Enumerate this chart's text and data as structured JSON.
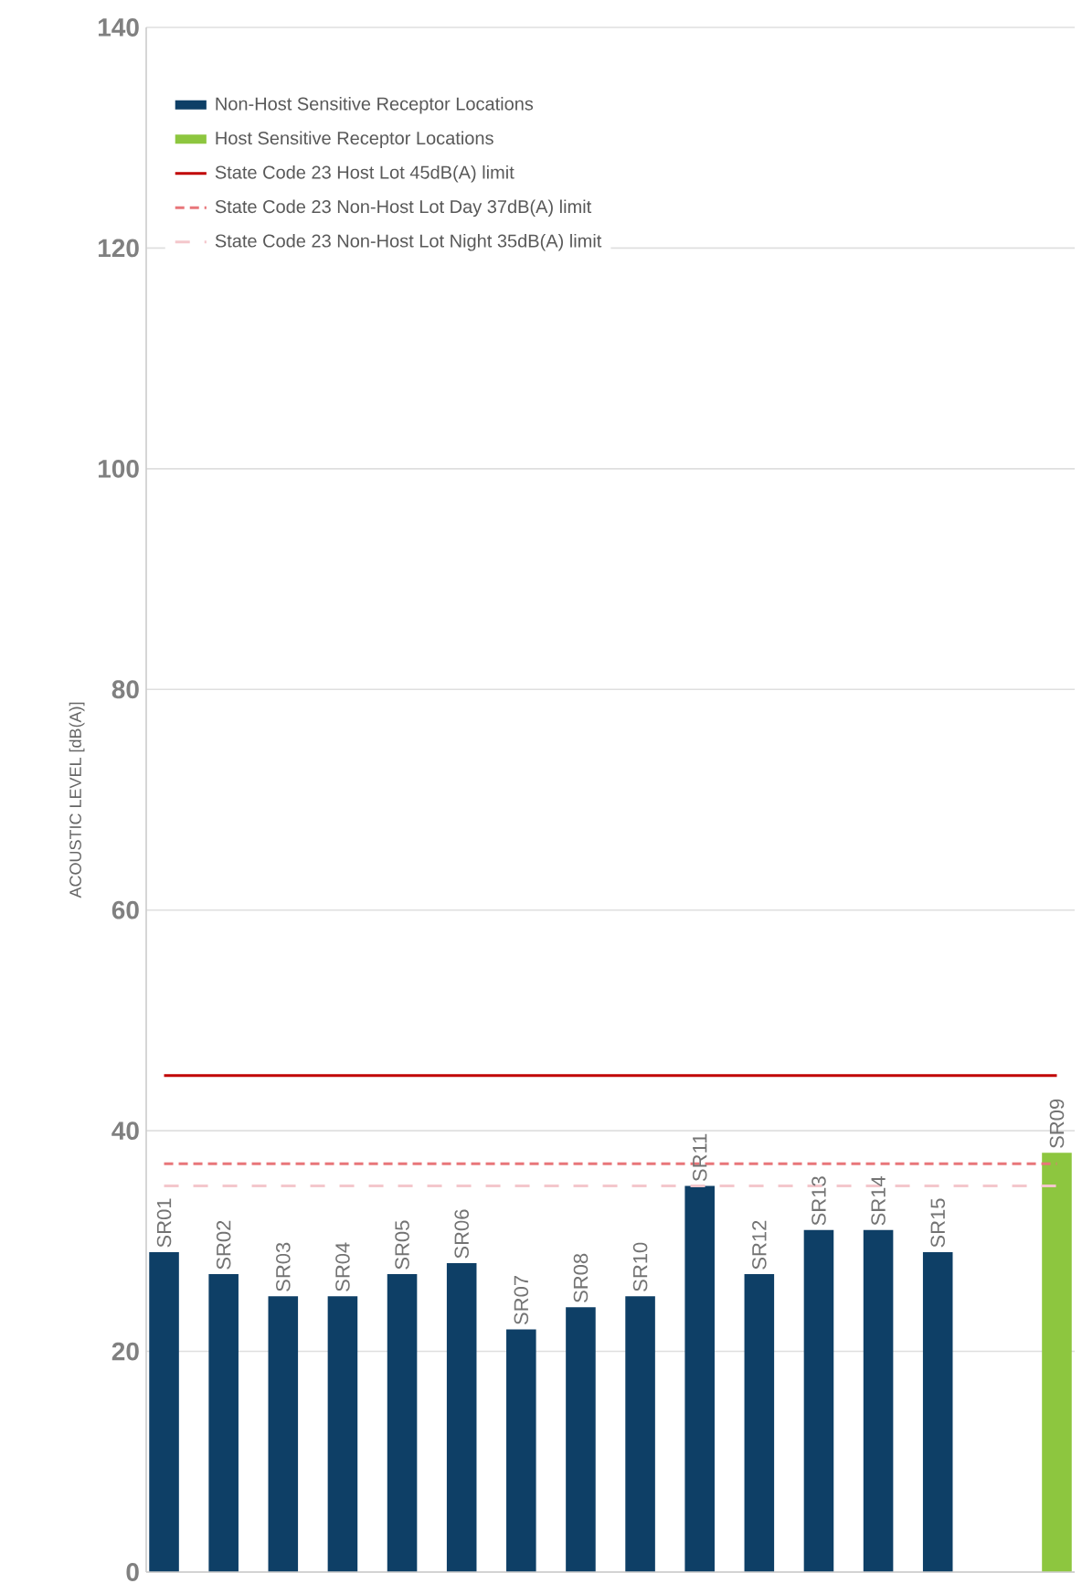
{
  "chart_data": {
    "type": "bar",
    "ylabel": "ACOUSTIC LEVEL [dB(A)]",
    "categories": [
      "SR01",
      "SR02",
      "SR03",
      "SR04",
      "SR05",
      "SR06",
      "SR07",
      "SR08",
      "SR10",
      "SR11",
      "SR12",
      "SR13",
      "SR14",
      "SR15",
      null,
      "SR09"
    ],
    "series": [
      {
        "name": "Non-Host Sensitive Receptor Locations",
        "color": "#0e3f66",
        "values": [
          29,
          27,
          25,
          25,
          27,
          28,
          22,
          24,
          25,
          35,
          27,
          31,
          31,
          29,
          null,
          null
        ]
      },
      {
        "name": "Host Sensitive Receptor Locations",
        "color": "#8dc63f",
        "values": [
          null,
          null,
          null,
          null,
          null,
          null,
          null,
          null,
          null,
          null,
          null,
          null,
          null,
          null,
          null,
          38
        ]
      }
    ],
    "ref_lines": [
      {
        "axis": "y",
        "value": 45,
        "label": "State Code 23 Host Lot 45dB(A) limit",
        "color": "#c00000",
        "line_style": "solid"
      },
      {
        "axis": "y",
        "value": 37,
        "label": "State Code 23 Non-Host Lot Day 37dB(A) limit",
        "color": "#e8767a",
        "line_style": "dashed"
      },
      {
        "axis": "y",
        "value": 35,
        "label": "State Code 23 Non-Host Lot Night 35dB(A) limit",
        "color": "#f4c7cc",
        "line_style": "loosely dashed"
      }
    ],
    "ylim": [
      0,
      140
    ],
    "yticks": [
      0,
      20,
      40,
      60,
      80,
      100,
      120,
      140
    ],
    "grid": "y",
    "legend": "top left"
  }
}
